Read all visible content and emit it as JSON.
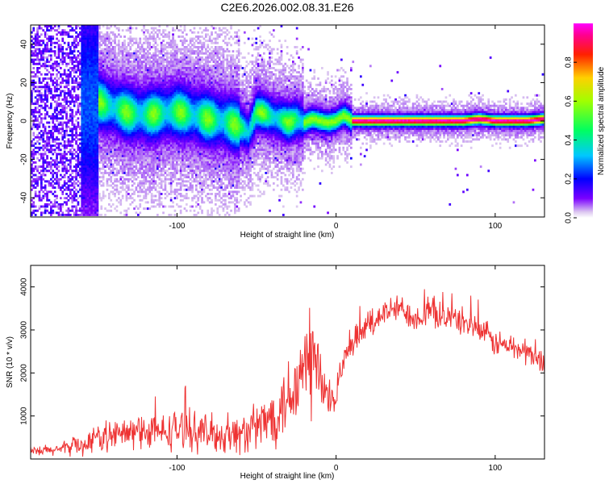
{
  "chart_data": [
    {
      "type": "heatmap",
      "title": "C2E6.2026.002.08.31.E26",
      "xlabel": "Height of straight line (km)",
      "ylabel": "Frequency (Hz)",
      "xlim": [
        -192,
        131
      ],
      "ylim": [
        -50,
        50
      ],
      "x_ticks": [
        -100,
        0,
        100
      ],
      "x_tick_labels": [
        "-100",
        "0",
        "100"
      ],
      "y_ticks": [
        -40,
        -20,
        0,
        20,
        40
      ],
      "y_tick_labels": [
        "-40",
        "-20",
        "0",
        "20",
        "40"
      ],
      "ridge_x": [
        -170,
        -160,
        -150,
        -140,
        -130,
        -120,
        -110,
        -100,
        -90,
        -80,
        -70,
        -60,
        -55,
        -50,
        -45,
        -40,
        -35,
        -30,
        -25,
        -20,
        -15,
        -10,
        -5,
        0,
        5,
        10,
        20,
        40,
        60,
        80,
        90,
        100,
        110,
        120,
        131
      ],
      "ridge_y": [
        5,
        9,
        10,
        7,
        4,
        3,
        4,
        5,
        3,
        1,
        0,
        -3,
        -6,
        5,
        4,
        2,
        1,
        -1,
        1,
        -1,
        1,
        0,
        -1,
        0,
        3,
        0,
        0,
        0,
        0,
        0,
        1,
        0,
        0,
        0,
        1
      ],
      "colorbar": {
        "label": "Normalized spectral amplitude",
        "range": [
          0,
          1
        ],
        "ticks": [
          0,
          0.2,
          0.4,
          0.6,
          0.8
        ],
        "tick_labels": [
          "0.0",
          "0.2",
          "0.4",
          "0.6",
          "0.8"
        ]
      }
    },
    {
      "type": "line",
      "xlabel": "Height of straight line (km)",
      "ylabel": "SNR (10 * v/v)",
      "xlim": [
        -192,
        131
      ],
      "ylim": [
        0,
        4500
      ],
      "x_ticks": [
        -100,
        0,
        100
      ],
      "x_tick_labels": [
        "-100",
        "0",
        "100"
      ],
      "y_ticks": [
        1000,
        2000,
        3000,
        4000
      ],
      "y_tick_labels": [
        "1000",
        "2000",
        "3000",
        "4000"
      ],
      "series": [
        {
          "name": "SNR",
          "color": "#ee3333",
          "x": [
            -192,
            -180,
            -170,
            -165,
            -160,
            -150,
            -140,
            -130,
            -120,
            -110,
            -100,
            -90,
            -80,
            -70,
            -60,
            -50,
            -40,
            -30,
            -25,
            -20,
            -15,
            -12,
            -10,
            -5,
            0,
            5,
            10,
            15,
            20,
            30,
            40,
            50,
            60,
            70,
            80,
            90,
            100,
            110,
            120,
            131
          ],
          "values": [
            150,
            200,
            250,
            350,
            300,
            500,
            550,
            600,
            650,
            600,
            700,
            650,
            600,
            550,
            600,
            700,
            1000,
            1500,
            1800,
            2000,
            2300,
            2200,
            1800,
            1300,
            1600,
            2200,
            2600,
            2900,
            3100,
            3400,
            3500,
            3300,
            3400,
            3300,
            3200,
            3000,
            2700,
            2600,
            2500,
            2200
          ],
          "spread": [
            150,
            180,
            200,
            300,
            300,
            400,
            450,
            500,
            550,
            500,
            600,
            550,
            550,
            550,
            600,
            700,
            900,
            1200,
            1400,
            1700,
            1800,
            1600,
            1200,
            700,
            500,
            450,
            450,
            450,
            450,
            400,
            400,
            400,
            450,
            400,
            400,
            400,
            400,
            400,
            400,
            350
          ]
        }
      ]
    }
  ]
}
